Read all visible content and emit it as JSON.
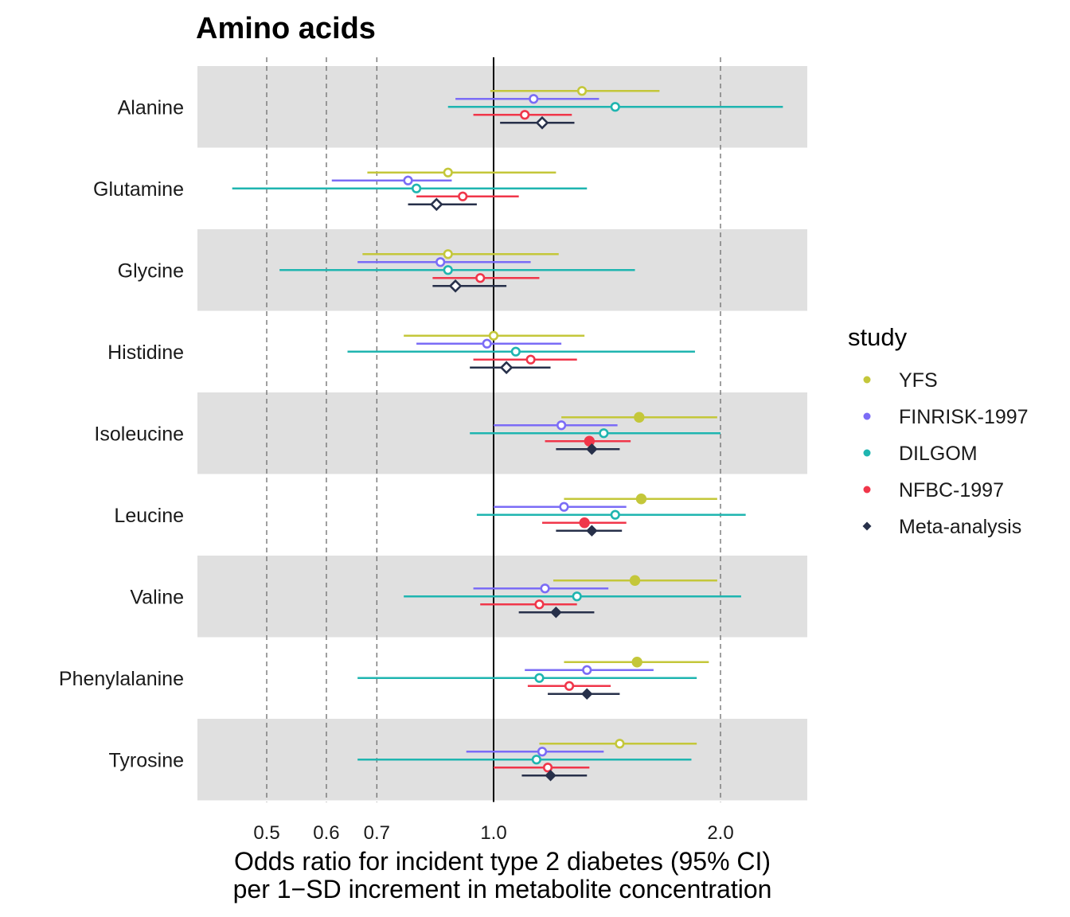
{
  "chart_data": {
    "type": "forest",
    "title": "Amino acids",
    "xlabel_line1": "Odds ratio for incident type 2 diabetes (95% CI)",
    "xlabel_line2": "per 1−SD increment in metabolite concentration",
    "x_scale": "log",
    "xlim": [
      0.42,
      2.6
    ],
    "x_ticks": [
      0.5,
      0.6,
      0.7,
      1.0,
      2.0
    ],
    "x_tick_labels": [
      "0.5",
      "0.6",
      "0.7",
      "1.0",
      "2.0"
    ],
    "reference_line": 1.0,
    "dashed_lines": [
      0.5,
      0.6,
      0.7,
      2.0
    ],
    "legend_title": "study",
    "legend_position": "right",
    "series": [
      {
        "name": "YFS",
        "color": "#c4c73a",
        "marker": "circle"
      },
      {
        "name": "FINRISK-1997",
        "color": "#7b6cf6",
        "marker": "circle"
      },
      {
        "name": "DILGOM",
        "color": "#1fb5b0",
        "marker": "circle"
      },
      {
        "name": "NFBC-1997",
        "color": "#f0364a",
        "marker": "circle"
      },
      {
        "name": "Meta-analysis",
        "color": "#27304a",
        "marker": "diamond"
      }
    ],
    "categories": [
      "Alanine",
      "Glutamine",
      "Glycine",
      "Histidine",
      "Isoleucine",
      "Leucine",
      "Valine",
      "Phenylalanine",
      "Tyrosine"
    ],
    "rows": [
      {
        "metabolite": "Alanine",
        "estimates": [
          {
            "or": 1.31,
            "lo": 0.99,
            "hi": 1.66,
            "sig": false
          },
          {
            "or": 1.13,
            "lo": 0.89,
            "hi": 1.38,
            "sig": false
          },
          {
            "or": 1.45,
            "lo": 0.87,
            "hi": 2.42,
            "sig": false
          },
          {
            "or": 1.1,
            "lo": 0.94,
            "hi": 1.27,
            "sig": false
          },
          {
            "or": 1.16,
            "lo": 1.02,
            "hi": 1.28,
            "sig": false
          }
        ]
      },
      {
        "metabolite": "Glutamine",
        "estimates": [
          {
            "or": 0.87,
            "lo": 0.68,
            "hi": 1.21,
            "sig": false
          },
          {
            "or": 0.77,
            "lo": 0.61,
            "hi": 0.88,
            "sig": false
          },
          {
            "or": 0.79,
            "lo": 0.45,
            "hi": 1.33,
            "sig": false
          },
          {
            "or": 0.91,
            "lo": 0.79,
            "hi": 1.08,
            "sig": false
          },
          {
            "or": 0.84,
            "lo": 0.77,
            "hi": 0.95,
            "sig": false
          }
        ]
      },
      {
        "metabolite": "Glycine",
        "estimates": [
          {
            "or": 0.87,
            "lo": 0.67,
            "hi": 1.22,
            "sig": false
          },
          {
            "or": 0.85,
            "lo": 0.66,
            "hi": 1.12,
            "sig": false
          },
          {
            "or": 0.87,
            "lo": 0.52,
            "hi": 1.54,
            "sig": false
          },
          {
            "or": 0.96,
            "lo": 0.83,
            "hi": 1.15,
            "sig": false
          },
          {
            "or": 0.89,
            "lo": 0.83,
            "hi": 1.04,
            "sig": false
          }
        ]
      },
      {
        "metabolite": "Histidine",
        "estimates": [
          {
            "or": 1.0,
            "lo": 0.76,
            "hi": 1.32,
            "sig": false
          },
          {
            "or": 0.98,
            "lo": 0.79,
            "hi": 1.23,
            "sig": false
          },
          {
            "or": 1.07,
            "lo": 0.64,
            "hi": 1.85,
            "sig": false
          },
          {
            "or": 1.12,
            "lo": 0.94,
            "hi": 1.29,
            "sig": false
          },
          {
            "or": 1.04,
            "lo": 0.93,
            "hi": 1.19,
            "sig": false
          }
        ]
      },
      {
        "metabolite": "Isoleucine",
        "estimates": [
          {
            "or": 1.56,
            "lo": 1.23,
            "hi": 1.98,
            "sig": true
          },
          {
            "or": 1.23,
            "lo": 1.0,
            "hi": 1.46,
            "sig": false
          },
          {
            "or": 1.4,
            "lo": 0.93,
            "hi": 2.0,
            "sig": false
          },
          {
            "or": 1.34,
            "lo": 1.17,
            "hi": 1.52,
            "sig": true
          },
          {
            "or": 1.35,
            "lo": 1.21,
            "hi": 1.47,
            "sig": true
          }
        ]
      },
      {
        "metabolite": "Leucine",
        "estimates": [
          {
            "or": 1.57,
            "lo": 1.24,
            "hi": 1.98,
            "sig": true
          },
          {
            "or": 1.24,
            "lo": 1.0,
            "hi": 1.5,
            "sig": false
          },
          {
            "or": 1.45,
            "lo": 0.95,
            "hi": 2.16,
            "sig": false
          },
          {
            "or": 1.32,
            "lo": 1.16,
            "hi": 1.5,
            "sig": true
          },
          {
            "or": 1.35,
            "lo": 1.21,
            "hi": 1.48,
            "sig": true
          }
        ]
      },
      {
        "metabolite": "Valine",
        "estimates": [
          {
            "or": 1.54,
            "lo": 1.2,
            "hi": 1.98,
            "sig": true
          },
          {
            "or": 1.17,
            "lo": 0.94,
            "hi": 1.42,
            "sig": false
          },
          {
            "or": 1.29,
            "lo": 0.76,
            "hi": 2.13,
            "sig": false
          },
          {
            "or": 1.15,
            "lo": 0.96,
            "hi": 1.29,
            "sig": false
          },
          {
            "or": 1.21,
            "lo": 1.08,
            "hi": 1.36,
            "sig": true
          }
        ]
      },
      {
        "metabolite": "Phenylalanine",
        "estimates": [
          {
            "or": 1.55,
            "lo": 1.24,
            "hi": 1.93,
            "sig": true
          },
          {
            "or": 1.33,
            "lo": 1.1,
            "hi": 1.63,
            "sig": false
          },
          {
            "or": 1.15,
            "lo": 0.66,
            "hi": 1.86,
            "sig": false
          },
          {
            "or": 1.26,
            "lo": 1.11,
            "hi": 1.43,
            "sig": false
          },
          {
            "or": 1.33,
            "lo": 1.18,
            "hi": 1.47,
            "sig": true
          }
        ]
      },
      {
        "metabolite": "Tyrosine",
        "estimates": [
          {
            "or": 1.47,
            "lo": 1.15,
            "hi": 1.86,
            "sig": false
          },
          {
            "or": 1.16,
            "lo": 0.92,
            "hi": 1.4,
            "sig": false
          },
          {
            "or": 1.14,
            "lo": 0.66,
            "hi": 1.83,
            "sig": false
          },
          {
            "or": 1.18,
            "lo": 1.0,
            "hi": 1.34,
            "sig": false
          },
          {
            "or": 1.19,
            "lo": 1.09,
            "hi": 1.33,
            "sig": true
          }
        ]
      }
    ]
  }
}
